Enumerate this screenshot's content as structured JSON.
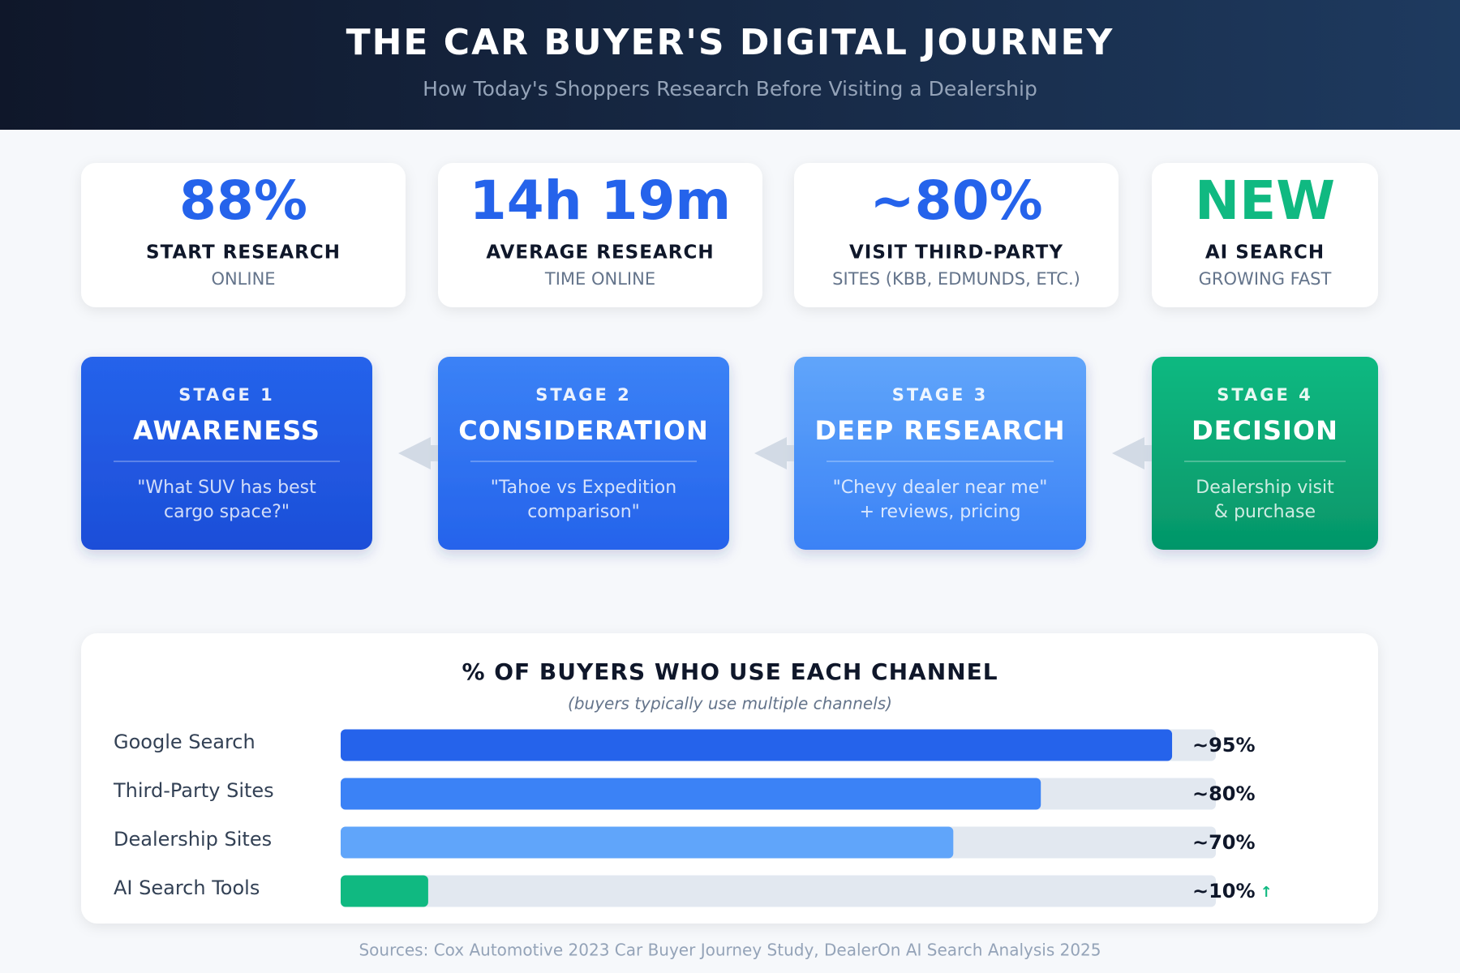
{
  "header": {
    "title": "THE CAR BUYER'S DIGITAL JOURNEY",
    "subtitle": "How Today's Shoppers Research Before Visiting a Dealership"
  },
  "stats": [
    {
      "value": "88%",
      "label": "START RESEARCH",
      "sublabel": "ONLINE",
      "color": "#2563eb"
    },
    {
      "value": "14h 19m",
      "label": "AVERAGE RESEARCH",
      "sublabel": "TIME ONLINE",
      "color": "#2563eb"
    },
    {
      "value": "~80%",
      "label": "VISIT THIRD-PARTY",
      "sublabel": "SITES (KBB, EDMUNDS, ETC.)",
      "color": "#2563eb"
    },
    {
      "value": "NEW",
      "label": "AI SEARCH",
      "sublabel": "GROWING FAST",
      "color": "#10b981"
    }
  ],
  "stages": [
    {
      "stage": "STAGE 1",
      "name": "AWARENESS",
      "quote": [
        "\"What SUV has best",
        "cargo space?\""
      ],
      "colors": [
        "#2563eb",
        "#1d4ed8"
      ]
    },
    {
      "stage": "STAGE 2",
      "name": "CONSIDERATION",
      "quote": [
        "\"Tahoe vs Expedition",
        "comparison\""
      ],
      "colors": [
        "#3b82f6",
        "#2563eb"
      ]
    },
    {
      "stage": "STAGE 3",
      "name": "DEEP RESEARCH",
      "quote": [
        "\"Chevy dealer near me\"",
        "+ reviews, pricing"
      ],
      "colors": [
        "#60a5fa",
        "#3b82f6"
      ]
    },
    {
      "stage": "STAGE 4",
      "name": "DECISION",
      "quote": [
        "Dealership visit",
        "& purchase"
      ],
      "colors": [
        "#10b981",
        "#059669"
      ]
    }
  ],
  "chart_data": {
    "type": "bar",
    "orientation": "horizontal",
    "title": "% OF BUYERS WHO USE EACH CHANNEL",
    "subtitle": "(buyers typically use multiple channels)",
    "categories": [
      "Google Search",
      "Third-Party Sites",
      "Dealership Sites",
      "AI Search Tools"
    ],
    "values": [
      95,
      80,
      70,
      10
    ],
    "value_labels": [
      "~95%",
      "~80%",
      "~70%",
      "~10%"
    ],
    "colors": [
      "#2563eb",
      "#3b82f6",
      "#60a5fa",
      "#10b981"
    ],
    "xlim": [
      0,
      100
    ],
    "annotation": "↑"
  },
  "footer": {
    "sources": "Sources: Cox Automotive 2023 Car Buyer Journey Study, DealerOn AI Search Analysis 2025"
  }
}
